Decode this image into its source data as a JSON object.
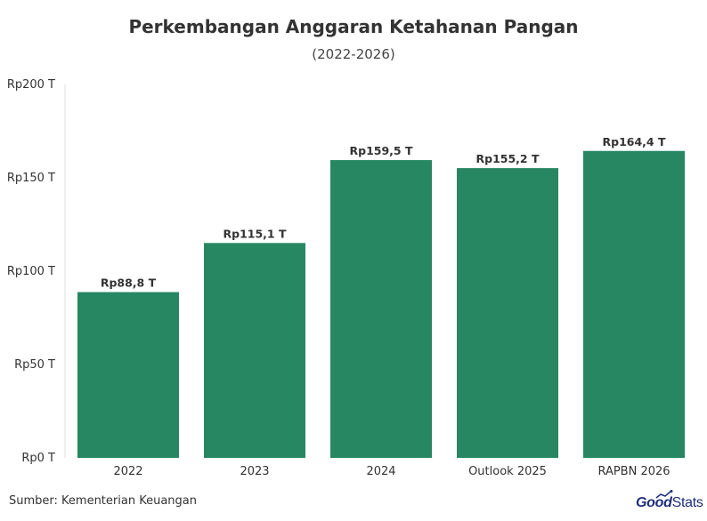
{
  "chart_data": {
    "type": "bar",
    "title": "Perkembangan Anggaran Ketahanan Pangan",
    "subtitle": "(2022-2026)",
    "categories": [
      "2022",
      "2023",
      "2024",
      "Outlook 2025",
      "RAPBN 2026"
    ],
    "values": [
      88.8,
      115.1,
      159.5,
      155.2,
      164.4
    ],
    "data_labels": [
      "Rp88,8 T",
      "Rp115,1 T",
      "Rp159,5 T",
      "Rp155,2 T",
      "Rp164,4 T"
    ],
    "yticks": [
      0,
      50,
      100,
      150,
      200
    ],
    "ytick_labels": [
      "Rp0 T",
      "Rp50 T",
      "Rp100 T",
      "Rp150 T",
      "Rp200 T"
    ],
    "ylim": [
      0,
      200
    ],
    "xlabel": "",
    "ylabel": "",
    "grid": false,
    "bar_color": "#288763"
  },
  "source": "Sumber: Kementerian Keuangan",
  "brand": {
    "good": "Good",
    "stats": "Stats",
    "color": "#1f2e7a"
  }
}
